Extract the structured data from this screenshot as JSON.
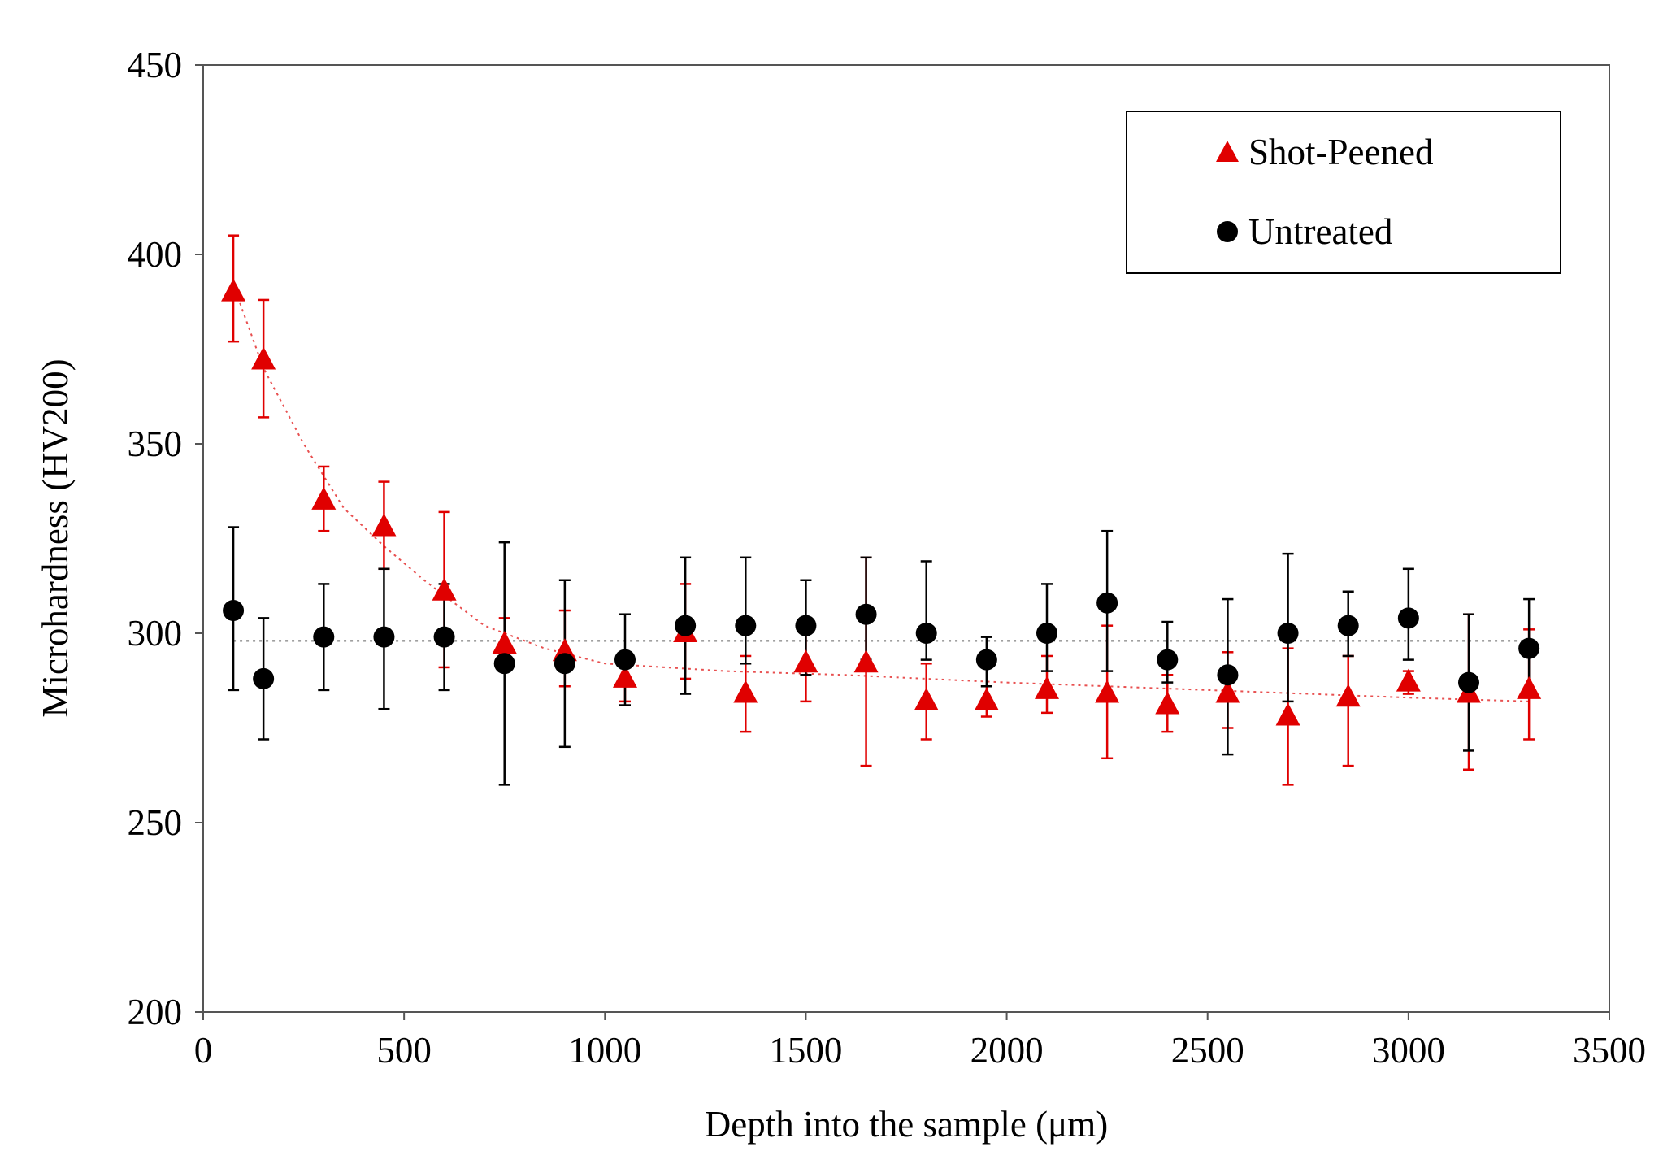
{
  "chart_data": {
    "type": "scatter",
    "title": "",
    "xlabel": "Depth into the sample (μm)",
    "ylabel": "Microhardness (HV200)",
    "xlim": [
      0,
      3500
    ],
    "ylim": [
      200,
      450
    ],
    "xticks": [
      0,
      500,
      1000,
      1500,
      2000,
      2500,
      3000,
      3500
    ],
    "yticks": [
      200,
      250,
      300,
      350,
      400,
      450
    ],
    "grid": false,
    "legend_position": "top-right",
    "series": [
      {
        "name": "Shot-Peened",
        "marker": "triangle",
        "color": "#e00000",
        "x": [
          75,
          150,
          300,
          450,
          600,
          750,
          900,
          1050,
          1200,
          1350,
          1500,
          1650,
          1800,
          1950,
          2100,
          2250,
          2400,
          2550,
          2700,
          2850,
          3000,
          3150,
          3300
        ],
        "y": [
          390,
          372,
          335,
          328,
          311,
          297,
          295,
          288,
          300,
          284,
          292,
          292,
          282,
          282,
          285,
          284,
          281,
          284,
          278,
          283,
          287,
          284,
          285
        ],
        "err_lo": [
          13,
          15,
          8,
          11,
          20,
          7,
          9,
          6,
          12,
          10,
          10,
          27,
          10,
          4,
          6,
          17,
          7,
          9,
          18,
          18,
          3,
          20,
          13
        ],
        "err_hi": [
          15,
          16,
          9,
          12,
          21,
          7,
          11,
          6,
          13,
          10,
          10,
          28,
          10,
          4,
          9,
          18,
          8,
          11,
          18,
          11,
          3,
          21,
          16
        ],
        "trendline": "power",
        "trendline_points": [
          [
            75,
            392
          ],
          [
            150,
            370
          ],
          [
            250,
            350
          ],
          [
            350,
            333
          ],
          [
            450,
            323
          ],
          [
            550,
            314
          ],
          [
            700,
            302
          ],
          [
            850,
            296
          ],
          [
            1000,
            292
          ],
          [
            1300,
            290
          ],
          [
            1600,
            289
          ],
          [
            2000,
            287
          ],
          [
            2500,
            285
          ],
          [
            3000,
            283
          ],
          [
            3300,
            282
          ]
        ]
      },
      {
        "name": "Untreated",
        "marker": "circle",
        "color": "#000000",
        "x": [
          75,
          150,
          300,
          450,
          600,
          750,
          900,
          1050,
          1200,
          1350,
          1500,
          1650,
          1800,
          1950,
          2100,
          2250,
          2400,
          2550,
          2700,
          2850,
          3000,
          3150,
          3300
        ],
        "y": [
          306,
          288,
          299,
          299,
          299,
          292,
          292,
          293,
          302,
          302,
          302,
          305,
          300,
          293,
          300,
          308,
          293,
          289,
          300,
          302,
          304,
          287,
          296
        ],
        "err_lo": [
          21,
          16,
          14,
          19,
          14,
          32,
          22,
          12,
          18,
          10,
          13,
          12,
          7,
          7,
          10,
          18,
          6,
          21,
          18,
          8,
          11,
          18,
          13
        ],
        "err_hi": [
          22,
          16,
          14,
          18,
          14,
          32,
          22,
          12,
          18,
          18,
          12,
          15,
          19,
          6,
          13,
          19,
          10,
          20,
          21,
          9,
          13,
          18,
          13
        ],
        "trendline": "constant",
        "trendline_value": 298
      }
    ]
  }
}
